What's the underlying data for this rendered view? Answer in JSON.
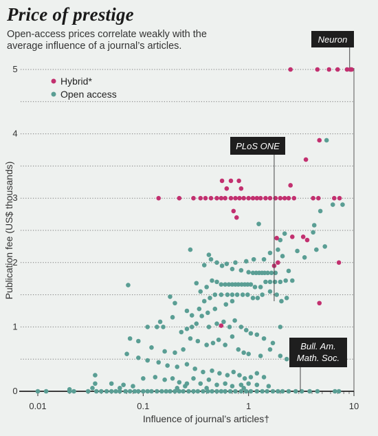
{
  "title": "Price of prestige",
  "subtitle": "Open-access prices correlate weakly with the average influence of a journal’s articles.",
  "colors": {
    "hybrid": "#c2306f",
    "open_access": "#5a9e94",
    "callout_bg": "#1e1e1e",
    "background": "#eef1ef"
  },
  "chart_data": {
    "type": "scatter",
    "xscale": "log",
    "xlabel": "Influence of journal’s articles†",
    "ylabel": "Publication fee (US$ thousands)",
    "xlim": [
      0.01,
      10
    ],
    "ylim": [
      0,
      5
    ],
    "xticks": [
      {
        "v": 0.01,
        "label": "0.01"
      },
      {
        "v": 0.1,
        "label": "0.1"
      },
      {
        "v": 1,
        "label": "1"
      },
      {
        "v": 10,
        "label": "10"
      }
    ],
    "yticks": [
      {
        "v": 0,
        "label": "0"
      },
      {
        "v": 1,
        "label": "1"
      },
      {
        "v": 2,
        "label": "2"
      },
      {
        "v": 3,
        "label": "3"
      },
      {
        "v": 4,
        "label": "4"
      },
      {
        "v": 5,
        "label": "5"
      }
    ],
    "grid": "dotted horizontal",
    "legend_position": "top-left",
    "series": [
      {
        "name": "Hybrid*",
        "color": "#c2306f",
        "points": [
          [
            2.5,
            5
          ],
          [
            4.5,
            5
          ],
          [
            5.8,
            5
          ],
          [
            7,
            5
          ],
          [
            8.6,
            5
          ],
          [
            9.3,
            5
          ],
          [
            9.5,
            5
          ],
          [
            0.14,
            3
          ],
          [
            0.22,
            3
          ],
          [
            0.3,
            3
          ],
          [
            0.35,
            3
          ],
          [
            0.39,
            3
          ],
          [
            0.44,
            3
          ],
          [
            0.5,
            3
          ],
          [
            0.55,
            3
          ],
          [
            0.6,
            3
          ],
          [
            0.68,
            3
          ],
          [
            0.75,
            3
          ],
          [
            0.82,
            3
          ],
          [
            0.9,
            3
          ],
          [
            1,
            3
          ],
          [
            1.1,
            3
          ],
          [
            1.2,
            3
          ],
          [
            1.3,
            3
          ],
          [
            1.45,
            3
          ],
          [
            1.6,
            3
          ],
          [
            1.8,
            3
          ],
          [
            2,
            3
          ],
          [
            2.2,
            3
          ],
          [
            2.4,
            3
          ],
          [
            2.7,
            3
          ],
          [
            4.1,
            3
          ],
          [
            4.6,
            3
          ],
          [
            6.5,
            3
          ],
          [
            7.3,
            3
          ],
          [
            0.56,
            3.27
          ],
          [
            0.68,
            3.27
          ],
          [
            0.81,
            3.27
          ],
          [
            0.62,
            3.15
          ],
          [
            0.85,
            3.15
          ],
          [
            2.5,
            3.2
          ],
          [
            3.5,
            3.6
          ],
          [
            4.7,
            3.9
          ],
          [
            0.72,
            2.8
          ],
          [
            0.77,
            2.7
          ],
          [
            1.85,
            2.38
          ],
          [
            2.6,
            2.4
          ],
          [
            3.3,
            2.4
          ],
          [
            3.6,
            2.35
          ],
          [
            1.9,
            2.0
          ],
          [
            7.2,
            2.0
          ],
          [
            1.75,
            1.95
          ],
          [
            4.7,
            1.37
          ],
          [
            0.55,
            1.02
          ]
        ]
      },
      {
        "name": "Open access",
        "color": "#5a9e94",
        "points": [
          [
            9.2,
            5
          ],
          [
            5.5,
            3.9
          ],
          [
            6.3,
            2.9
          ],
          [
            7.8,
            2.9
          ],
          [
            4.2,
            2.58
          ],
          [
            4.8,
            2.8
          ],
          [
            4.1,
            2.47
          ],
          [
            4.4,
            2.2
          ],
          [
            5.3,
            2.25
          ],
          [
            1.25,
            2.6
          ],
          [
            2,
            2.35
          ],
          [
            2.2,
            2.45
          ],
          [
            2.9,
            2.18
          ],
          [
            3.4,
            2.08
          ],
          [
            2.1,
            2.1
          ],
          [
            1.9,
            2.2
          ],
          [
            1.6,
            2.15
          ],
          [
            1.4,
            2.05
          ],
          [
            1.12,
            2.05
          ],
          [
            0.95,
            2.02
          ],
          [
            0.75,
            2.0
          ],
          [
            0.62,
            1.98
          ],
          [
            0.5,
            2.0
          ],
          [
            0.44,
            2.05
          ],
          [
            0.38,
            1.96
          ],
          [
            0.28,
            2.2
          ],
          [
            0.42,
            2.12
          ],
          [
            0.56,
            1.95
          ],
          [
            0.7,
            1.9
          ],
          [
            0.85,
            1.88
          ],
          [
            1.0,
            1.85
          ],
          [
            1.1,
            1.84
          ],
          [
            1.18,
            1.84
          ],
          [
            1.26,
            1.84
          ],
          [
            1.34,
            1.84
          ],
          [
            1.42,
            1.84
          ],
          [
            1.52,
            1.84
          ],
          [
            1.65,
            1.84
          ],
          [
            1.8,
            1.84
          ],
          [
            2.4,
            1.87
          ],
          [
            0.45,
            1.72
          ],
          [
            0.5,
            1.7
          ],
          [
            0.55,
            1.66
          ],
          [
            0.6,
            1.66
          ],
          [
            0.65,
            1.66
          ],
          [
            0.7,
            1.66
          ],
          [
            0.75,
            1.66
          ],
          [
            0.8,
            1.66
          ],
          [
            0.86,
            1.66
          ],
          [
            0.92,
            1.66
          ],
          [
            0.98,
            1.66
          ],
          [
            1.05,
            1.66
          ],
          [
            1.15,
            1.62
          ],
          [
            1.3,
            1.62
          ],
          [
            1.45,
            1.7
          ],
          [
            1.6,
            1.7
          ],
          [
            1.78,
            1.7
          ],
          [
            2.0,
            1.7
          ],
          [
            2.25,
            1.72
          ],
          [
            2.6,
            1.72
          ],
          [
            0.4,
            1.62
          ],
          [
            0.35,
            1.55
          ],
          [
            0.32,
            1.68
          ],
          [
            0.48,
            1.5
          ],
          [
            0.55,
            1.5
          ],
          [
            0.63,
            1.5
          ],
          [
            0.7,
            1.5
          ],
          [
            0.78,
            1.5
          ],
          [
            0.88,
            1.5
          ],
          [
            0.98,
            1.5
          ],
          [
            1.1,
            1.45
          ],
          [
            1.22,
            1.45
          ],
          [
            1.35,
            1.5
          ],
          [
            1.6,
            1.55
          ],
          [
            1.85,
            1.5
          ],
          [
            2.05,
            1.4
          ],
          [
            2.3,
            1.45
          ],
          [
            0.43,
            1.45
          ],
          [
            0.38,
            1.4
          ],
          [
            0.072,
            1.65
          ],
          [
            0.18,
            1.47
          ],
          [
            0.2,
            1.37
          ],
          [
            0.26,
            1.25
          ],
          [
            0.34,
            1.28
          ],
          [
            0.29,
            1.18
          ],
          [
            0.19,
            1.15
          ],
          [
            0.145,
            1.08
          ],
          [
            0.11,
            1.0
          ],
          [
            0.135,
            1.0
          ],
          [
            0.155,
            1.0
          ],
          [
            0.42,
            1.0
          ],
          [
            0.5,
            1.05
          ],
          [
            0.58,
            1.08
          ],
          [
            0.66,
            1.0
          ],
          [
            0.74,
            1.1
          ],
          [
            0.85,
            1.0
          ],
          [
            0.95,
            0.95
          ],
          [
            1.05,
            0.9
          ],
          [
            1.2,
            0.88
          ],
          [
            1.4,
            0.82
          ],
          [
            1.7,
            0.75
          ],
          [
            2.0,
            1.0
          ],
          [
            0.7,
            1.4
          ],
          [
            0.61,
            1.35
          ],
          [
            0.48,
            1.28
          ],
          [
            0.41,
            1.22
          ],
          [
            0.36,
            1.17
          ],
          [
            0.32,
            1.05
          ],
          [
            0.29,
            1.0
          ],
          [
            0.26,
            0.97
          ],
          [
            0.23,
            0.92
          ],
          [
            0.075,
            0.82
          ],
          [
            0.09,
            0.78
          ],
          [
            0.12,
            0.68
          ],
          [
            0.16,
            0.62
          ],
          [
            0.2,
            0.6
          ],
          [
            0.24,
            0.65
          ],
          [
            0.28,
            0.82
          ],
          [
            0.33,
            0.78
          ],
          [
            0.4,
            0.72
          ],
          [
            0.46,
            0.75
          ],
          [
            0.52,
            0.8
          ],
          [
            0.6,
            0.72
          ],
          [
            0.7,
            0.85
          ],
          [
            0.8,
            0.65
          ],
          [
            0.9,
            0.6
          ],
          [
            1.0,
            0.58
          ],
          [
            1.3,
            0.55
          ],
          [
            1.6,
            0.65
          ],
          [
            2.0,
            0.55
          ],
          [
            2.3,
            0.5
          ],
          [
            2.6,
            0.42
          ],
          [
            0.07,
            0.58
          ],
          [
            0.09,
            0.52
          ],
          [
            0.11,
            0.48
          ],
          [
            0.14,
            0.45
          ],
          [
            0.17,
            0.4
          ],
          [
            0.21,
            0.38
          ],
          [
            0.26,
            0.42
          ],
          [
            0.31,
            0.35
          ],
          [
            0.37,
            0.3
          ],
          [
            0.45,
            0.32
          ],
          [
            0.53,
            0.28
          ],
          [
            0.63,
            0.25
          ],
          [
            0.72,
            0.3
          ],
          [
            0.82,
            0.25
          ],
          [
            0.92,
            0.2
          ],
          [
            1.05,
            0.22
          ],
          [
            1.2,
            0.28
          ],
          [
            1.4,
            0.22
          ],
          [
            0.035,
            0.25
          ],
          [
            0.035,
            0.12
          ],
          [
            0.05,
            0.12
          ],
          [
            0.065,
            0.1
          ],
          [
            0.08,
            0.08
          ],
          [
            0.1,
            0.2
          ],
          [
            0.13,
            0.22
          ],
          [
            0.16,
            0.18
          ],
          [
            0.19,
            0.2
          ],
          [
            0.22,
            0.14
          ],
          [
            0.26,
            0.12
          ],
          [
            0.3,
            0.2
          ],
          [
            0.35,
            0.12
          ],
          [
            0.42,
            0.18
          ],
          [
            0.5,
            0.1
          ],
          [
            0.6,
            0.12
          ],
          [
            0.7,
            0.08
          ],
          [
            0.85,
            0.1
          ],
          [
            1.0,
            0.12
          ],
          [
            1.2,
            0.1
          ],
          [
            1.55,
            0.08
          ],
          [
            0.01,
            0
          ],
          [
            0.012,
            0
          ],
          [
            0.02,
            0
          ],
          [
            0.022,
            0
          ],
          [
            0.03,
            0
          ],
          [
            0.036,
            0
          ],
          [
            0.04,
            0
          ],
          [
            0.045,
            0
          ],
          [
            0.05,
            0
          ],
          [
            0.055,
            0
          ],
          [
            0.06,
            0
          ],
          [
            0.068,
            0
          ],
          [
            0.075,
            0
          ],
          [
            0.083,
            0
          ],
          [
            0.09,
            0
          ],
          [
            0.1,
            0
          ],
          [
            0.11,
            0
          ],
          [
            0.12,
            0
          ],
          [
            0.135,
            0
          ],
          [
            0.15,
            0
          ],
          [
            0.165,
            0
          ],
          [
            0.18,
            0
          ],
          [
            0.2,
            0
          ],
          [
            0.22,
            0
          ],
          [
            0.24,
            0
          ],
          [
            0.27,
            0
          ],
          [
            0.3,
            0
          ],
          [
            0.33,
            0
          ],
          [
            0.37,
            0
          ],
          [
            0.41,
            0
          ],
          [
            0.45,
            0
          ],
          [
            0.5,
            0
          ],
          [
            0.55,
            0
          ],
          [
            0.6,
            0
          ],
          [
            0.67,
            0
          ],
          [
            0.75,
            0
          ],
          [
            0.85,
            0
          ],
          [
            0.95,
            0
          ],
          [
            1.05,
            0
          ],
          [
            1.2,
            0
          ],
          [
            1.35,
            0
          ],
          [
            1.5,
            0
          ],
          [
            1.7,
            0
          ],
          [
            1.9,
            0
          ],
          [
            2.1,
            0
          ],
          [
            2.4,
            0
          ],
          [
            2.8,
            0
          ],
          [
            3.2,
            0
          ],
          [
            3.8,
            0
          ],
          [
            4.5,
            0
          ],
          [
            6.6,
            0
          ],
          [
            7.2,
            0
          ],
          [
            0.02,
            0.03
          ],
          [
            0.033,
            0.05
          ],
          [
            0.06,
            0.05
          ],
          [
            0.21,
            0.05
          ],
          [
            0.25,
            0.08
          ],
          [
            0.4,
            0.05
          ],
          [
            0.9,
            0.05
          ]
        ]
      }
    ],
    "annotations": [
      {
        "text": "Neuron",
        "x": 9.1,
        "y": 5
      },
      {
        "text": "PLoS ONE",
        "x": 1.75,
        "y": 1.4
      },
      {
        "text": [
          "Bull. Am.",
          "Math. Soc."
        ],
        "x": 3.1,
        "y": 0
      }
    ]
  }
}
